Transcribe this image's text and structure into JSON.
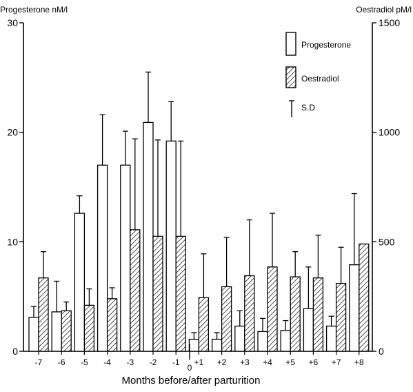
{
  "chart_data": {
    "type": "bar",
    "xlabel": "Months before/after parturition",
    "categories": [
      "-7",
      "-6",
      "-5",
      "-4",
      "-3",
      "-2",
      "-1",
      "+1",
      "+2",
      "+3",
      "+4",
      "+5",
      "+6",
      "+7",
      "+8"
    ],
    "zero_marker": "0",
    "y_left": {
      "label": "Progesterone nM/l",
      "range": [
        0,
        30
      ],
      "ticks": [
        "0",
        "10",
        "20",
        "30"
      ]
    },
    "y_right": {
      "label": "Oestradiol pM/l",
      "range": [
        0,
        1500
      ],
      "ticks": [
        "0",
        "500",
        "1000",
        "1500"
      ]
    },
    "series": [
      {
        "name": "Progesterone",
        "axis": "left",
        "fill": "open",
        "values": [
          3.1,
          3.6,
          12.6,
          17.0,
          17.0,
          20.9,
          19.2,
          1.1,
          1.1,
          2.3,
          1.8,
          1.9,
          3.9,
          2.3,
          7.9
        ],
        "sd": [
          1.0,
          2.8,
          1.6,
          4.6,
          3.1,
          4.6,
          3.6,
          0.6,
          0.6,
          1.4,
          1.2,
          0.9,
          3.8,
          0.9,
          6.5
        ]
      },
      {
        "name": "Oestradiol",
        "axis": "right",
        "fill": "hatched",
        "values": [
          335,
          185,
          210,
          240,
          555,
          525,
          525,
          245,
          295,
          345,
          385,
          340,
          335,
          310,
          490
        ],
        "sd": [
          120,
          40,
          75,
          50,
          415,
          440,
          435,
          200,
          225,
          255,
          245,
          115,
          195,
          165,
          0
        ]
      }
    ],
    "legend": {
      "placement": "top-right",
      "items": [
        {
          "symbol": "open-bar",
          "label": "Progesterone"
        },
        {
          "symbol": "hatched-bar",
          "label": "Oestradiol"
        },
        {
          "symbol": "error-bar",
          "label": "S.D"
        }
      ]
    },
    "grid": false
  }
}
